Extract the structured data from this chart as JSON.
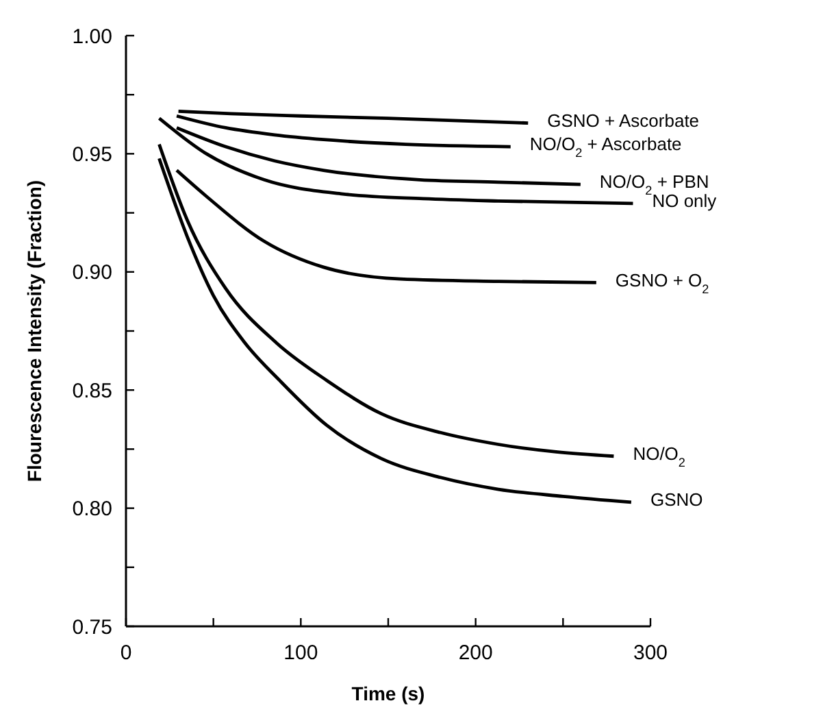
{
  "chart_data": {
    "type": "line",
    "xlabel": "Time (s)",
    "ylabel": "Flourescence Intensity (Fraction)",
    "xlim": [
      0,
      300
    ],
    "xticks": [
      0,
      {
        "value": 50,
        "label": null
      },
      100,
      {
        "value": 150,
        "label": null
      },
      200,
      {
        "value": 250,
        "label": null
      },
      300
    ],
    "ylim": [
      0.75,
      1.0
    ],
    "yticks": [
      {
        "value": 0.75,
        "label": "0.75"
      },
      {
        "value": 0.775,
        "label": null
      },
      {
        "value": 0.8,
        "label": "0.80"
      },
      {
        "value": 0.825,
        "label": null
      },
      {
        "value": 0.85,
        "label": "0.85"
      },
      {
        "value": 0.875,
        "label": null
      },
      {
        "value": 0.9,
        "label": "0.90"
      },
      {
        "value": 0.925,
        "label": null
      },
      {
        "value": 0.95,
        "label": "0.95"
      },
      {
        "value": 0.975,
        "label": null
      },
      {
        "value": 1.0,
        "label": "1.00"
      }
    ],
    "series": [
      {
        "name": "GSNO + Ascorbate",
        "color": "#000000",
        "x": [
          30,
          60,
          100,
          150,
          230
        ],
        "values": [
          0.968,
          0.967,
          0.966,
          0.965,
          0.963
        ]
      },
      {
        "name": "NO/O$_{2}$ + Ascorbate",
        "color": "#000000",
        "x": [
          29,
          57,
          85,
          113,
          160,
          220
        ],
        "values": [
          0.966,
          0.961,
          0.958,
          0.956,
          0.954,
          0.953
        ]
      },
      {
        "name": "NO/O$_{2}$ + PBN",
        "color": "#000000",
        "x": [
          29,
          57,
          85,
          113,
          168,
          213,
          260
        ],
        "values": [
          0.961,
          0.953,
          0.947,
          0.943,
          0.939,
          0.938,
          0.937
        ]
      },
      {
        "name": "NO only",
        "color": "#000000",
        "x": [
          19,
          46,
          79,
          124,
          170,
          213,
          290
        ],
        "values": [
          0.965,
          0.95,
          0.939,
          0.933,
          0.931,
          0.93,
          0.929
        ]
      },
      {
        "name": "GSNO + O$_{2}$",
        "color": "#000000",
        "x": [
          29,
          46,
          79,
          113,
          157,
          213,
          269
        ],
        "values": [
          0.943,
          0.932,
          0.913,
          0.902,
          0.897,
          0.896,
          0.8955
        ]
      },
      {
        "name": "NO/O$_{2}$",
        "color": "#000000",
        "x": [
          19,
          35,
          57,
          86,
          115,
          146,
          180,
          213,
          279
        ],
        "values": [
          0.954,
          0.922,
          0.893,
          0.87,
          0.854,
          0.84,
          0.832,
          0.827,
          0.822
        ]
      },
      {
        "name": "GSNO",
        "color": "#000000",
        "x": [
          19,
          35,
          50,
          68,
          88,
          115,
          146,
          180,
          213,
          250,
          289
        ],
        "values": [
          0.948,
          0.915,
          0.89,
          0.87,
          0.854,
          0.835,
          0.821,
          0.813,
          0.808,
          0.805,
          0.8025
        ]
      }
    ]
  }
}
